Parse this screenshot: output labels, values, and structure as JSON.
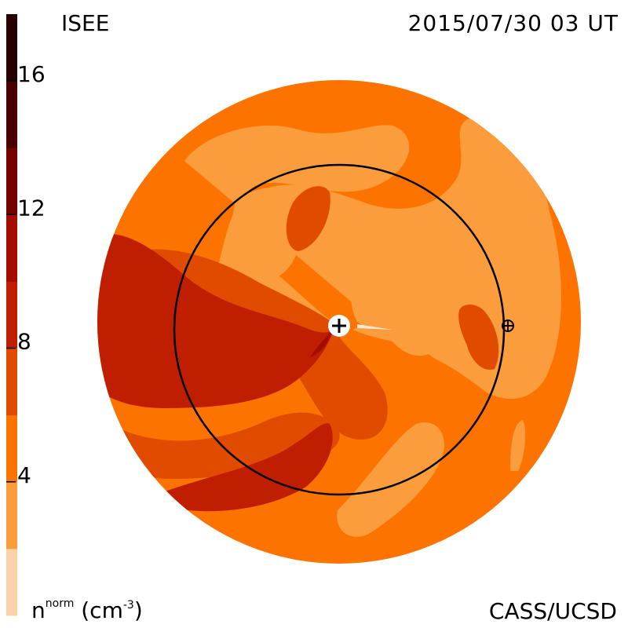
{
  "header": {
    "organization": "ISEE",
    "datetime": "2015/07/30 03 UT"
  },
  "footer": {
    "credit": "CASS/UCSD",
    "units_symbol": "n",
    "units_superscript": "norm",
    "units_open": " (cm",
    "units_exponent": "-3",
    "units_close": ")"
  },
  "chart_data": {
    "type": "heatmap",
    "title": "",
    "colorbar": {
      "min": 0,
      "max": 18,
      "step": 2,
      "ticks": [
        4,
        8,
        12,
        16
      ],
      "tick_labels": [
        "4",
        "8",
        "12",
        "16"
      ],
      "levels": [
        {
          "from": 0,
          "to": 2,
          "color": "#fad3aa"
        },
        {
          "from": 2,
          "to": 4,
          "color": "#fb9d3c"
        },
        {
          "from": 4,
          "to": 6,
          "color": "#fd7300"
        },
        {
          "from": 6,
          "to": 8,
          "color": "#e14b00"
        },
        {
          "from": 8,
          "to": 10,
          "color": "#c01e00"
        },
        {
          "from": 10,
          "to": 12,
          "color": "#a50c00"
        },
        {
          "from": 12,
          "to": 14,
          "color": "#760000"
        },
        {
          "from": 14,
          "to": 16,
          "color": "#4a0000"
        },
        {
          "from": 16,
          "to": 18,
          "color": "#260000"
        }
      ]
    },
    "map": {
      "sun_marker": "plus",
      "earth_marker": "circled-plus",
      "earth_orbit": true
    }
  }
}
